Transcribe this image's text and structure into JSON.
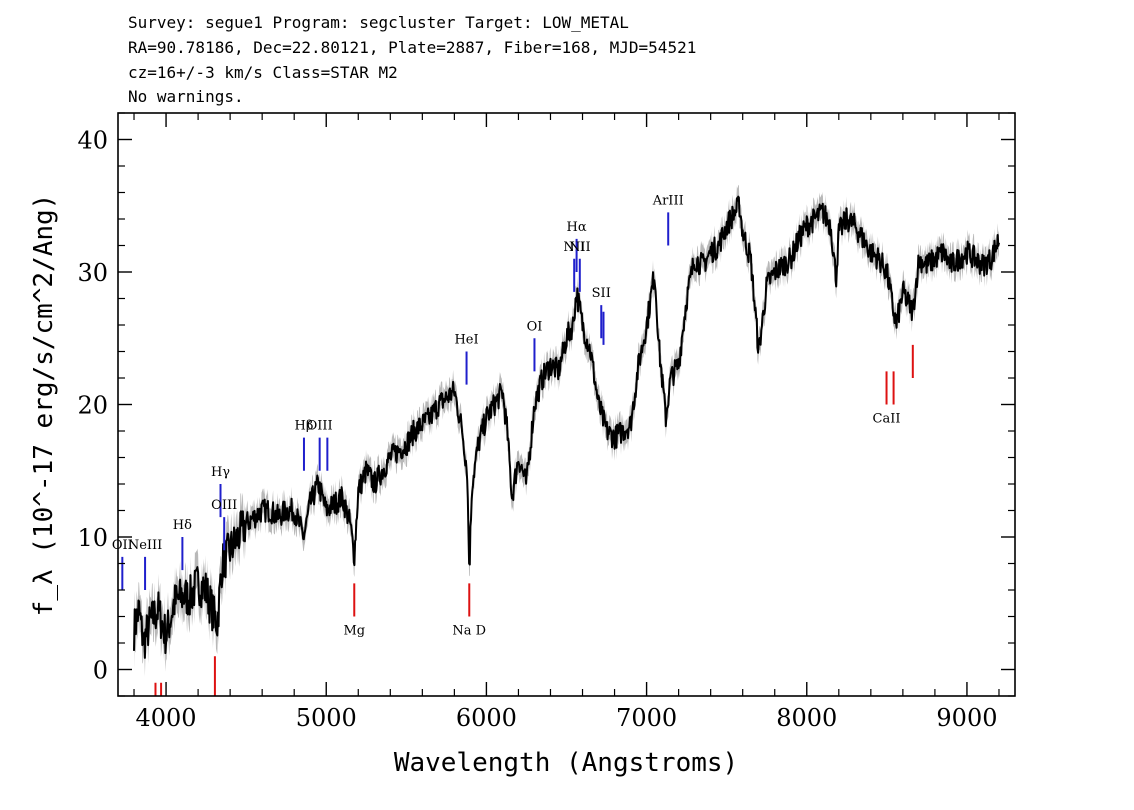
{
  "header": {
    "line1": "Survey: segue1 Program: segcluster Target: LOW_METAL",
    "line2": "RA=90.78186, Dec=22.80121, Plate=2887, Fiber=168, MJD=54521",
    "line3": "cz=16+/-3 km/s Class=STAR M2",
    "line4": "No warnings."
  },
  "colors": {
    "spectrum": "#000000",
    "error_band": "#b8b8b8",
    "emission_marker": "#1f1fcc",
    "absorption_marker": "#dd1111"
  },
  "chart_data": {
    "type": "line",
    "xlabel": "Wavelength (Angstroms)",
    "ylabel": "f_λ (10^-17 erg/s/cm^2/Ang)",
    "xlim": [
      3700,
      9300
    ],
    "ylim": [
      -2,
      42
    ],
    "xticks": [
      4000,
      5000,
      6000,
      7000,
      8000,
      9000
    ],
    "yticks": [
      0,
      10,
      20,
      30,
      40
    ],
    "grid": false,
    "series": [
      {
        "x": [
          3800,
          3830,
          3860,
          3900,
          3950,
          4000,
          4050,
          4100,
          4150,
          4200,
          4250,
          4300,
          4320,
          4350,
          4400,
          4450,
          4500,
          4550,
          4600,
          4650,
          4700,
          4750,
          4800,
          4860,
          4900,
          4950,
          5000,
          5050,
          5100,
          5150,
          5175,
          5200,
          5250,
          5300,
          5350,
          5400,
          5450,
          5500,
          5550,
          5600,
          5650,
          5700,
          5750,
          5800,
          5850,
          5880,
          5893,
          5910,
          5950,
          6000,
          6050,
          6100,
          6130,
          6160,
          6200,
          6250,
          6300,
          6350,
          6400,
          6450,
          6500,
          6540,
          6563,
          6600,
          6650,
          6700,
          6750,
          6800,
          6850,
          6900,
          6950,
          7000,
          7050,
          7080,
          7120,
          7150,
          7200,
          7250,
          7300,
          7350,
          7400,
          7450,
          7500,
          7550,
          7580,
          7600,
          7650,
          7700,
          7720,
          7750,
          7800,
          7850,
          7900,
          7950,
          8000,
          8050,
          8100,
          8150,
          8183,
          8200,
          8250,
          8300,
          8350,
          8400,
          8450,
          8500,
          8542,
          8560,
          8600,
          8662,
          8700,
          8750,
          8800,
          8850,
          8900,
          8950,
          9000,
          9050,
          9100,
          9150,
          9200
        ],
        "y": [
          3.0,
          4.5,
          2.0,
          3.5,
          4.5,
          2.5,
          5.0,
          5.5,
          5.5,
          6.5,
          6.0,
          4.0,
          3.5,
          8.0,
          9.0,
          10.0,
          11.0,
          11.5,
          12.0,
          12.0,
          11.5,
          12.0,
          12.0,
          10.0,
          12.5,
          14.0,
          12.0,
          12.5,
          13.0,
          11.0,
          8.5,
          13.5,
          15.0,
          14.0,
          15.0,
          16.0,
          16.5,
          17.0,
          18.0,
          18.5,
          19.0,
          20.0,
          20.5,
          21.0,
          18.0,
          15.0,
          7.5,
          14.0,
          17.0,
          19.0,
          20.0,
          21.0,
          18.0,
          13.0,
          16.0,
          14.0,
          20.0,
          22.0,
          23.0,
          22.5,
          25.0,
          26.0,
          28.5,
          26.0,
          24.0,
          20.0,
          18.0,
          17.5,
          18.0,
          18.5,
          23.0,
          26.0,
          30.0,
          24.0,
          19.0,
          22.0,
          23.0,
          28.0,
          31.0,
          30.5,
          31.5,
          32.0,
          33.5,
          34.5,
          35.0,
          33.0,
          31.0,
          24.0,
          26.0,
          29.0,
          30.0,
          30.5,
          31.0,
          32.5,
          33.5,
          34.0,
          34.5,
          33.5,
          29.5,
          33.0,
          34.0,
          33.5,
          32.5,
          31.5,
          31.0,
          30.0,
          27.0,
          26.0,
          28.5,
          27.0,
          31.0,
          30.5,
          31.0,
          31.5,
          30.5,
          31.0,
          31.5,
          31.0,
          30.5,
          31.0,
          32.5
        ]
      }
    ],
    "line_markers": {
      "emission": [
        {
          "label": "OII",
          "wavelength": 3727,
          "y_top": 8.5,
          "y_bottom": 6.0
        },
        {
          "label": "NeIII",
          "wavelength": 3869,
          "y_top": 8.5,
          "y_bottom": 6.0
        },
        {
          "label": "Hδ",
          "wavelength": 4102,
          "y_top": 10.0,
          "y_bottom": 7.5
        },
        {
          "label": "Hγ",
          "wavelength": 4340,
          "y_top": 14.0,
          "y_bottom": 11.5
        },
        {
          "label": "OIII",
          "wavelength": 4363,
          "y_top": 11.5,
          "y_bottom": 9.0
        },
        {
          "label": "Hβ",
          "wavelength": 4861,
          "y_top": 17.5,
          "y_bottom": 15.0
        },
        {
          "label": "OIII",
          "wavelength": 4959,
          "y_top": 17.5,
          "y_bottom": 15.0
        },
        {
          "label": "",
          "wavelength": 5007,
          "y_top": 17.5,
          "y_bottom": 15.0
        },
        {
          "label": "HeI",
          "wavelength": 5876,
          "y_top": 24.0,
          "y_bottom": 21.5
        },
        {
          "label": "OI",
          "wavelength": 6300,
          "y_top": 25.0,
          "y_bottom": 22.5
        },
        {
          "label": "NII",
          "wavelength": 6548,
          "y_top": 31.0,
          "y_bottom": 28.5
        },
        {
          "label": "Hα",
          "wavelength": 6563,
          "y_top": 32.5,
          "y_bottom": 30.0
        },
        {
          "label": "NII",
          "wavelength": 6583,
          "y_top": 31.0,
          "y_bottom": 28.5
        },
        {
          "label": "SII",
          "wavelength": 6717,
          "y_top": 27.5,
          "y_bottom": 25.0
        },
        {
          "label": "",
          "wavelength": 6731,
          "y_top": 27.0,
          "y_bottom": 24.5
        },
        {
          "label": "ArIII",
          "wavelength": 7135,
          "y_top": 34.5,
          "y_bottom": 32.0
        }
      ],
      "absorption": [
        {
          "label": "",
          "wavelength": 3934,
          "y_top": -1.0,
          "y_bottom": -3.0
        },
        {
          "label": "",
          "wavelength": 3969,
          "y_top": -1.0,
          "y_bottom": -3.0
        },
        {
          "label": "",
          "wavelength": 4305,
          "y_top": 1.0,
          "y_bottom": -2.0
        },
        {
          "label": "Mg",
          "wavelength": 5175,
          "y_top": 6.5,
          "y_bottom": 4.0
        },
        {
          "label": "Na D",
          "wavelength": 5893,
          "y_top": 6.5,
          "y_bottom": 4.0
        },
        {
          "label": "CaII",
          "wavelength": 8498,
          "y_top": 22.5,
          "y_bottom": 20.0
        },
        {
          "label": "",
          "wavelength": 8542,
          "y_top": 22.5,
          "y_bottom": 20.0
        },
        {
          "label": "",
          "wavelength": 8662,
          "y_top": 24.5,
          "y_bottom": 22.0
        }
      ]
    }
  }
}
